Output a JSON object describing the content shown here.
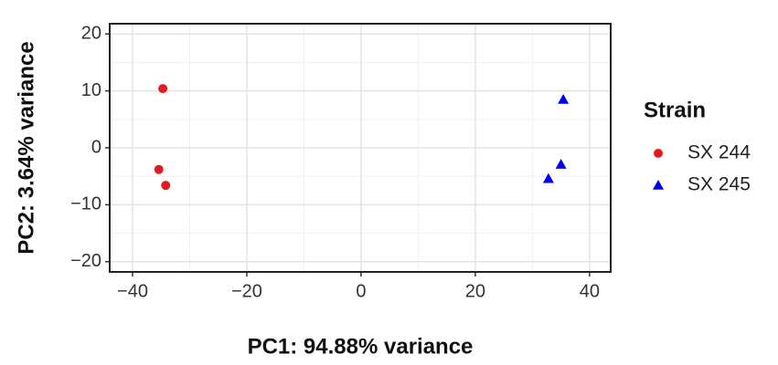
{
  "chart_data": {
    "type": "scatter",
    "xlabel": "PC1: 94.88% variance",
    "ylabel": "PC2: 3.64% variance",
    "legend_title": "Strain",
    "series": [
      {
        "name": "SX 244",
        "color": "#e41a1c",
        "marker": "circle",
        "x": [
          -34.7,
          -35.4,
          -34.2
        ],
        "values": [
          10.4,
          -3.8,
          -6.6
        ]
      },
      {
        "name": "SX 245",
        "color": "#0000ee",
        "marker": "triangle",
        "x": [
          35.4,
          35.0,
          32.8
        ],
        "values": [
          8.5,
          -2.9,
          -5.4
        ]
      }
    ],
    "xlim": [
      -44,
      43.7
    ],
    "ylim": [
      -21.8,
      21.8
    ],
    "xticks": [
      {
        "value": -40,
        "label": "−40"
      },
      {
        "value": -20,
        "label": "−20"
      },
      0,
      20,
      40
    ],
    "yticks": [
      {
        "value": -20,
        "label": "−20"
      },
      {
        "value": -10,
        "label": "−10"
      },
      0,
      10,
      20
    ],
    "grid": true,
    "legend": "right"
  }
}
